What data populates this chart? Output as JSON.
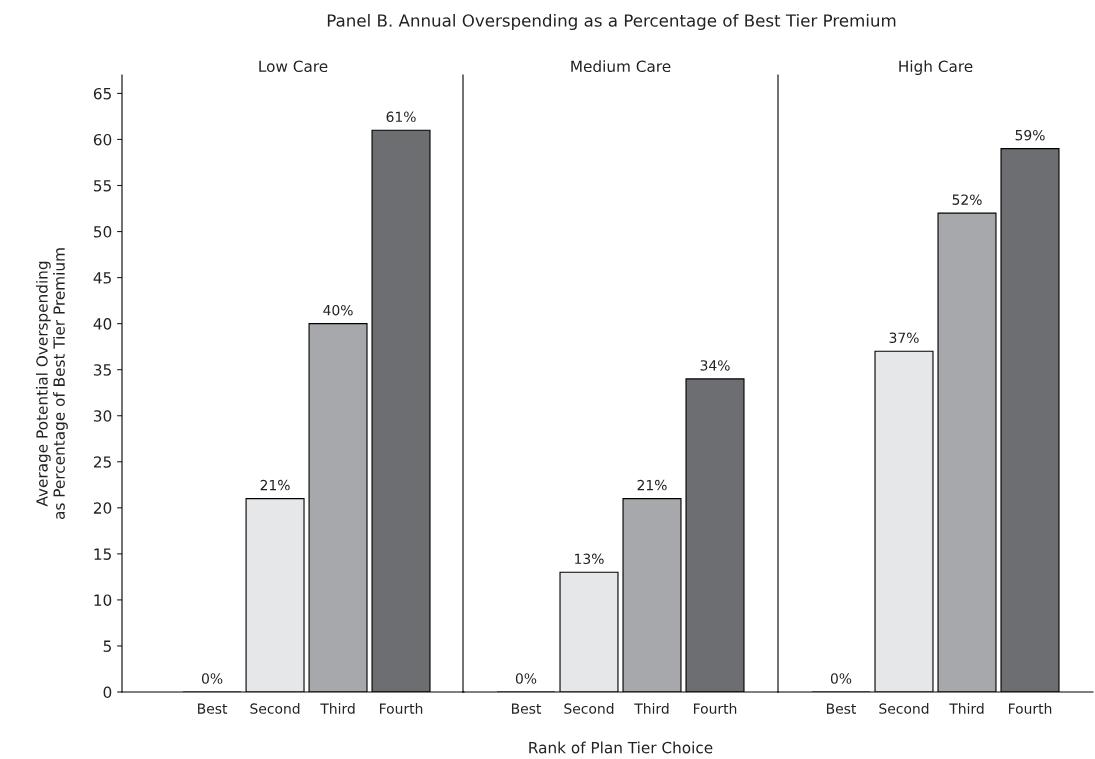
{
  "chart_data": [
    {
      "type": "bar",
      "title": "Low Care",
      "ylabel": "Average Potential Overspending\nas Percentage of Best Tier Premium",
      "annotations": [
        "Panel B. Annual Overspending as a Percentage of Best Tier Premium"
      ],
      "categories": [
        "Best",
        "Second",
        "Third",
        "Fourth"
      ],
      "values": [
        0,
        21,
        40,
        61
      ],
      "colors": [
        "#e6e7e9",
        "#e6e7e9",
        "#a7a8ab",
        "#6d6e72"
      ],
      "value_labels": [
        "0%",
        "21%",
        "40%",
        "61%"
      ],
      "ylim": [
        0,
        67
      ],
      "yticks": [
        0,
        5,
        10,
        15,
        20,
        25,
        30,
        35,
        40,
        45,
        50,
        55,
        60,
        65
      ],
      "grid": false
    },
    {
      "type": "bar",
      "title": "Medium Care",
      "xlabel": "Rank of Plan Tier Choice",
      "categories": [
        "Best",
        "Second",
        "Third",
        "Fourth"
      ],
      "values": [
        0,
        13,
        21,
        34
      ],
      "colors": [
        "#e6e7e9",
        "#e6e7e9",
        "#a7a8ab",
        "#6d6e72"
      ],
      "value_labels": [
        "0%",
        "13%",
        "21%",
        "34%"
      ],
      "ylim": [
        0,
        67
      ],
      "tick_labels": "x",
      "grid": false
    },
    {
      "type": "bar",
      "title": "High Care",
      "categories": [
        "Best",
        "Second",
        "Third",
        "Fourth"
      ],
      "values": [
        0,
        37,
        52,
        59
      ],
      "colors": [
        "#e6e7e9",
        "#e6e7e9",
        "#a7a8ab",
        "#6d6e72"
      ],
      "value_labels": [
        "0%",
        "37%",
        "52%",
        "59%"
      ],
      "ylim": [
        0,
        67
      ],
      "tick_labels": "x",
      "grid": false
    }
  ]
}
